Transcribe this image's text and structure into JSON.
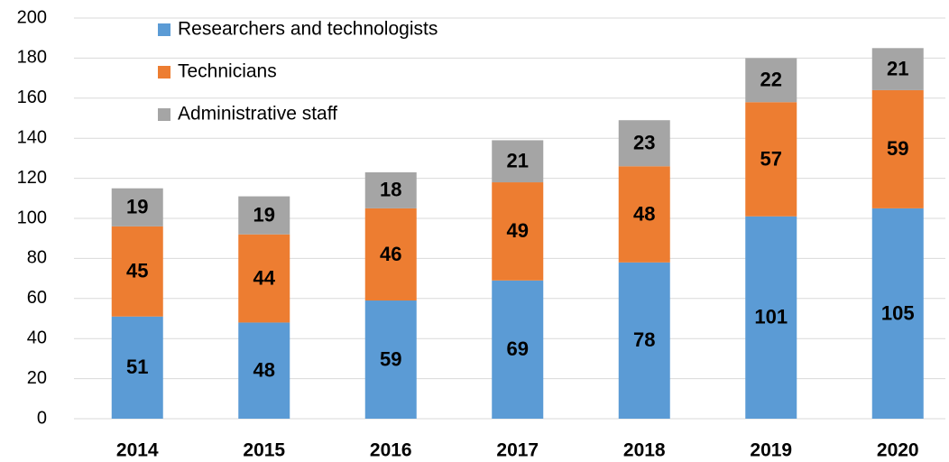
{
  "chart_data": {
    "type": "stacked_bar",
    "categories": [
      "2014",
      "2015",
      "2016",
      "2017",
      "2018",
      "2019",
      "2020"
    ],
    "series": [
      {
        "name": "Researchers and technologists",
        "color": "#5b9bd5",
        "values": [
          51,
          48,
          59,
          69,
          78,
          101,
          105
        ]
      },
      {
        "name": "Technicians",
        "color": "#ed7d31",
        "values": [
          45,
          44,
          46,
          49,
          48,
          57,
          59
        ]
      },
      {
        "name": "Administrative staff",
        "color": "#a5a5a5",
        "values": [
          19,
          19,
          18,
          21,
          23,
          22,
          21
        ]
      }
    ],
    "ylim": [
      0,
      200
    ],
    "yticks": [
      0,
      20,
      40,
      60,
      80,
      100,
      120,
      140,
      160,
      180,
      200
    ],
    "grid": true,
    "legend": "top-left"
  }
}
